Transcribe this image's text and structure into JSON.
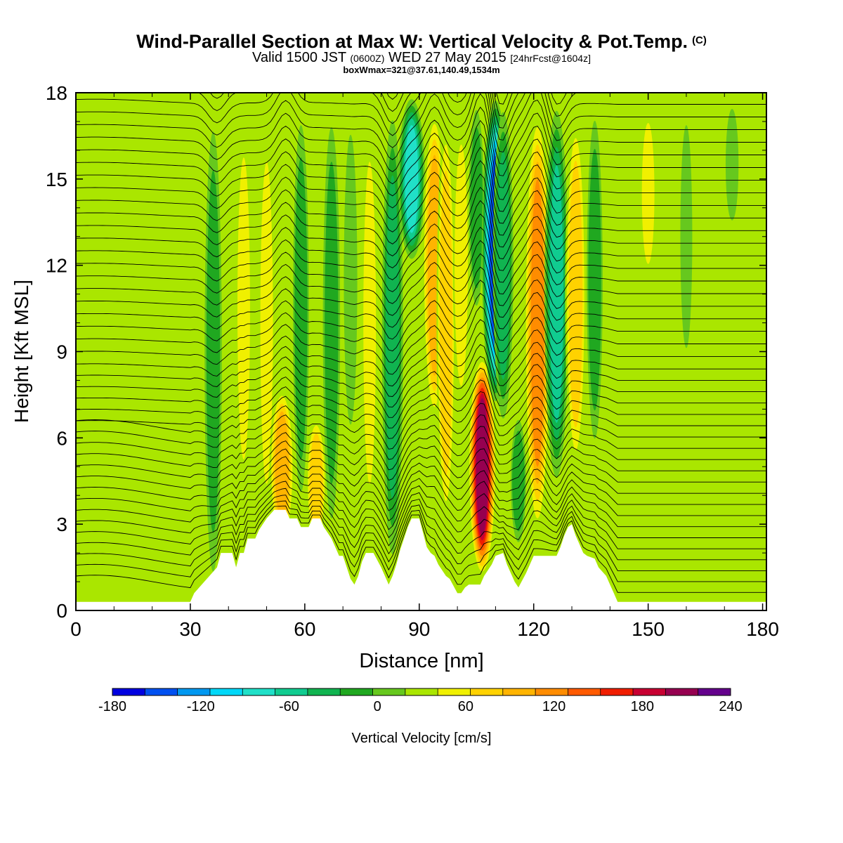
{
  "header": {
    "title": "Wind-Parallel Section at Max W: Vertical Velocity & Pot.Temp.",
    "copyright": "(C)",
    "valid_prefix": "Valid 1500 JST",
    "valid_utc": "(0600Z)",
    "valid_date": "WED 27 May 2015",
    "forecast": "[24hrFcst@1604z]",
    "box_info": "boxWmax=321@37.61,140.49,1534m"
  },
  "chart_data": {
    "type": "heatmap",
    "xlabel": "Distance [nm]",
    "ylabel": "Height [Kft MSL]",
    "xlim": [
      0,
      181
    ],
    "ylim": [
      0,
      18
    ],
    "x_ticks": [
      "0",
      "30",
      "60",
      "90",
      "120",
      "150",
      "180"
    ],
    "y_ticks": [
      "0",
      "3",
      "6",
      "9",
      "12",
      "15",
      "18"
    ],
    "colorbar": {
      "label": "Vertical Velocity [cm/s]",
      "min": -180,
      "max": 240,
      "step": 20,
      "tick_labels": [
        "-180",
        "-120",
        "-60",
        "0",
        "60",
        "120",
        "180",
        "240"
      ],
      "colors": [
        "#0000e0",
        "#0050f0",
        "#0098f0",
        "#00d8f8",
        "#20e0c8",
        "#10cc90",
        "#10b450",
        "#20a820",
        "#66c81e",
        "#aae600",
        "#f0f000",
        "#ffd200",
        "#ffb400",
        "#ff8c00",
        "#ff5a00",
        "#f01e00",
        "#c80032",
        "#960050",
        "#64008c"
      ]
    },
    "background_w": 5,
    "terrain_profile": [
      [
        0,
        0.3
      ],
      [
        30,
        0.3
      ],
      [
        31,
        0.6
      ],
      [
        33,
        0.9
      ],
      [
        35,
        1.2
      ],
      [
        37,
        1.5
      ],
      [
        38,
        2.0
      ],
      [
        41,
        2.0
      ],
      [
        42,
        1.5
      ],
      [
        43,
        2.0
      ],
      [
        44,
        2.0
      ],
      [
        45,
        2.5
      ],
      [
        47,
        2.5
      ],
      [
        48,
        2.8
      ],
      [
        50,
        3.2
      ],
      [
        52,
        3.5
      ],
      [
        55,
        3.5
      ],
      [
        56,
        3.2
      ],
      [
        58,
        3.2
      ],
      [
        59,
        2.9
      ],
      [
        61,
        2.9
      ],
      [
        62,
        3.2
      ],
      [
        64,
        3.2
      ],
      [
        65,
        2.9
      ],
      [
        67,
        2.5
      ],
      [
        68,
        2.2
      ],
      [
        69,
        1.9
      ],
      [
        70,
        1.9
      ],
      [
        71,
        1.5
      ],
      [
        72,
        1.1
      ],
      [
        73,
        0.9
      ],
      [
        74,
        1.2
      ],
      [
        75,
        1.7
      ],
      [
        76,
        2.0
      ],
      [
        78,
        2.0
      ],
      [
        80,
        1.5
      ],
      [
        82,
        0.9
      ],
      [
        83,
        1.2
      ],
      [
        84,
        1.6
      ],
      [
        85,
        2.1
      ],
      [
        86,
        2.5
      ],
      [
        87,
        2.9
      ],
      [
        88,
        3.2
      ],
      [
        90,
        3.2
      ],
      [
        91,
        2.7
      ],
      [
        92,
        2.2
      ],
      [
        93,
        2.0
      ],
      [
        94,
        1.9
      ],
      [
        95,
        1.6
      ],
      [
        96,
        1.4
      ],
      [
        97,
        1.2
      ],
      [
        98,
        1.1
      ],
      [
        100,
        0.6
      ],
      [
        101,
        0.6
      ],
      [
        102,
        0.8
      ],
      [
        103,
        0.9
      ],
      [
        106,
        0.9
      ],
      [
        107,
        1.2
      ],
      [
        109,
        1.6
      ],
      [
        110,
        1.9
      ],
      [
        112,
        2.0
      ],
      [
        113,
        1.6
      ],
      [
        114,
        1.3
      ],
      [
        115,
        1.0
      ],
      [
        116,
        0.8
      ],
      [
        118,
        1.3
      ],
      [
        119,
        1.6
      ],
      [
        120,
        1.9
      ],
      [
        126,
        1.9
      ],
      [
        127,
        2.2
      ],
      [
        128,
        2.6
      ],
      [
        129,
        2.9
      ],
      [
        130,
        3.0
      ],
      [
        131,
        2.6
      ],
      [
        132,
        2.3
      ],
      [
        133,
        2.0
      ],
      [
        134,
        1.9
      ],
      [
        136,
        1.8
      ],
      [
        137,
        1.5
      ],
      [
        139,
        1.2
      ],
      [
        140,
        0.9
      ],
      [
        141,
        0.6
      ],
      [
        142,
        0.3
      ],
      [
        181,
        0.3
      ]
    ],
    "w_bands": [
      {
        "x": 5,
        "z0": 5,
        "z1": 12,
        "w": -10
      },
      {
        "x": 18,
        "z0": 0,
        "z1": 4,
        "w": -15
      },
      {
        "x": 36,
        "z0": 0,
        "z1": 18,
        "w": -55
      },
      {
        "x": 44,
        "z0": 3,
        "z1": 18,
        "w": 40
      },
      {
        "x": 50,
        "z0": 2,
        "z1": 18,
        "w": 40
      },
      {
        "x": 54,
        "z0": 2,
        "z1": 8,
        "w": 95
      },
      {
        "x": 59,
        "z0": 3,
        "z1": 18,
        "w": -45
      },
      {
        "x": 63,
        "z0": 2,
        "z1": 7,
        "w": 70
      },
      {
        "x": 67,
        "z0": 2,
        "z1": 18,
        "w": -55
      },
      {
        "x": 72,
        "z0": 5,
        "z1": 18,
        "w": -35
      },
      {
        "x": 77,
        "z0": 2,
        "z1": 18,
        "w": 40
      },
      {
        "x": 83,
        "z0": 1,
        "z1": 18,
        "w": -75
      },
      {
        "x": 88,
        "z0": 12,
        "z1": 18,
        "w": -110
      },
      {
        "x": 94,
        "z0": 6,
        "z1": 18,
        "w": 90
      },
      {
        "x": 97,
        "z0": 2,
        "z1": 18,
        "w": 60
      },
      {
        "x": 101,
        "z0": 6,
        "z1": 18,
        "w": 50
      },
      {
        "x": 105,
        "z0": 10,
        "z1": 18,
        "w": -40
      },
      {
        "x": 106.5,
        "z0": 1,
        "z1": 9,
        "w": 190
      },
      {
        "x": 110,
        "z0": 7,
        "z1": 18,
        "w": -175
      },
      {
        "x": 112,
        "z0": 6,
        "z1": 18,
        "w": -70
      },
      {
        "x": 116,
        "z0": 2,
        "z1": 7,
        "w": -40
      },
      {
        "x": 121,
        "z0": 2,
        "z1": 18,
        "w": 100
      },
      {
        "x": 126,
        "z0": 4,
        "z1": 18,
        "w": -90
      },
      {
        "x": 131,
        "z0": 4,
        "z1": 18,
        "w": 75
      },
      {
        "x": 136,
        "z0": 5,
        "z1": 18,
        "w": -45
      },
      {
        "x": 144,
        "z0": 10,
        "z1": 18,
        "w": 30
      },
      {
        "x": 150,
        "z0": 11,
        "z1": 18,
        "w": 40
      },
      {
        "x": 160,
        "z0": 8,
        "z1": 18,
        "w": -20
      },
      {
        "x": 165,
        "z0": 4,
        "z1": 12,
        "w": -15
      },
      {
        "x": 172,
        "z0": 13,
        "z1": 18,
        "w": -30
      }
    ]
  }
}
